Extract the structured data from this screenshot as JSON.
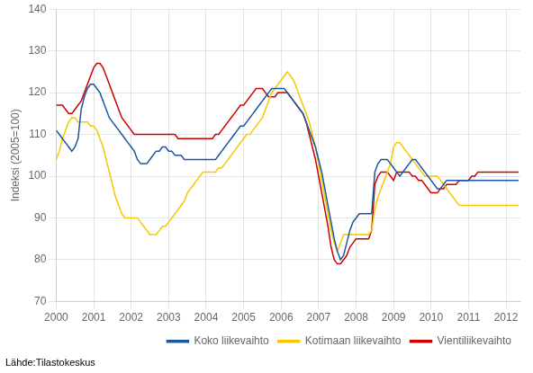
{
  "chart_data": {
    "type": "line",
    "ylabel": "Indeksi (2005=100)",
    "annotation": "Lähde:Tilastokeskus",
    "xlim": [
      2000,
      2012.3833333333332
    ],
    "xticks": [
      2000,
      2001,
      2002,
      2003,
      2004,
      2005,
      2006,
      2007,
      2008,
      2009,
      2010,
      2011,
      2012
    ],
    "ylim": [
      70,
      140
    ],
    "yticks": [
      70,
      80,
      90,
      100,
      110,
      120,
      130,
      140
    ],
    "grid": true,
    "legend": "lower right",
    "x": [
      2000,
      2000.0833333333333,
      2000.1666666666667,
      2000.25,
      2000.3333333333333,
      2000.4166666666667,
      2000.5,
      2000.5833333333333,
      2000.6666666666667,
      2000.75,
      2000.8333333333333,
      2000.9166666666667,
      2001,
      2001.0833333333333,
      2001.1666666666667,
      2001.25,
      2001.3333333333333,
      2001.4166666666667,
      2001.5,
      2001.5833333333333,
      2001.6666666666667,
      2001.75,
      2001.8333333333333,
      2001.9166666666667,
      2002,
      2002.0833333333333,
      2002.1666666666667,
      2002.25,
      2002.3333333333333,
      2002.4166666666667,
      2002.5,
      2002.5833333333333,
      2002.6666666666667,
      2002.75,
      2002.8333333333333,
      2002.9166666666667,
      2003,
      2003.0833333333333,
      2003.1666666666667,
      2003.25,
      2003.3333333333333,
      2003.4166666666667,
      2003.5,
      2003.5833333333333,
      2003.6666666666667,
      2003.75,
      2003.8333333333333,
      2003.9166666666667,
      2004,
      2004.0833333333333,
      2004.1666666666667,
      2004.25,
      2004.3333333333333,
      2004.4166666666667,
      2004.5,
      2004.5833333333333,
      2004.6666666666667,
      2004.75,
      2004.8333333333333,
      2004.9166666666667,
      2005,
      2005.0833333333333,
      2005.1666666666667,
      2005.25,
      2005.3333333333333,
      2005.4166666666667,
      2005.5,
      2005.5833333333333,
      2005.6666666666667,
      2005.75,
      2005.8333333333333,
      2005.9166666666667,
      2006,
      2006.0833333333333,
      2006.1666666666667,
      2006.25,
      2006.3333333333333,
      2006.4166666666667,
      2006.5,
      2006.5833333333333,
      2006.6666666666667,
      2006.75,
      2006.8333333333333,
      2006.9166666666667,
      2007,
      2007.0833333333333,
      2007.1666666666667,
      2007.25,
      2007.3333333333333,
      2007.4166666666667,
      2007.5,
      2007.5833333333333,
      2007.6666666666667,
      2007.75,
      2007.8333333333333,
      2007.9166666666667,
      2008,
      2008.0833333333333,
      2008.1666666666667,
      2008.25,
      2008.3333333333333,
      2008.4166666666667,
      2008.5,
      2008.5833333333333,
      2008.6666666666667,
      2008.75,
      2008.8333333333333,
      2008.9166666666667,
      2009,
      2009.0833333333333,
      2009.1666666666667,
      2009.25,
      2009.3333333333333,
      2009.4166666666667,
      2009.5,
      2009.5833333333333,
      2009.6666666666667,
      2009.75,
      2009.8333333333333,
      2009.9166666666667,
      2010,
      2010.0833333333333,
      2010.1666666666667,
      2010.25,
      2010.3333333333333,
      2010.4166666666667,
      2010.5,
      2010.5833333333333,
      2010.6666666666667,
      2010.75,
      2010.8333333333333,
      2010.9166666666667,
      2011,
      2011.0833333333333,
      2011.1666666666667,
      2011.25,
      2011.3333333333333,
      2011.4166666666667,
      2011.5,
      2011.5833333333333,
      2011.6666666666667,
      2011.75,
      2011.8333333333333,
      2011.9166666666667,
      2012,
      2012.0833333333333,
      2012.1666666666667,
      2012.25,
      2012.3333333333333
    ],
    "series": [
      {
        "name": "Koko liikevaihto",
        "color": "#1a56a0",
        "values": [
          111,
          110,
          109,
          108,
          107,
          106,
          107,
          109,
          116,
          119,
          121,
          122,
          122,
          121,
          120,
          118,
          116,
          114,
          113,
          112,
          111,
          110,
          109,
          108,
          107,
          106,
          104,
          103,
          103,
          103,
          104,
          105,
          106,
          106,
          107,
          107,
          106,
          106,
          105,
          105,
          105,
          104,
          104,
          104,
          104,
          104,
          104,
          104,
          104,
          104,
          104,
          104,
          105,
          106,
          107,
          108,
          109,
          110,
          111,
          112,
          112,
          113,
          114,
          115,
          116,
          117,
          118,
          119,
          120,
          121,
          121,
          121,
          121,
          121,
          120,
          119,
          118,
          117,
          116,
          115,
          113,
          111,
          109,
          107,
          104,
          101,
          97,
          93,
          89,
          85,
          82,
          80,
          81,
          84,
          87,
          89,
          90,
          91,
          91,
          91,
          91,
          91,
          101,
          103,
          104,
          104,
          104,
          103,
          102,
          101,
          100,
          101,
          102,
          103,
          104,
          104,
          103,
          102,
          101,
          100,
          99,
          98,
          97,
          97,
          98,
          99,
          99,
          99,
          99,
          99,
          99,
          99,
          99,
          99,
          99,
          99,
          99,
          99,
          99,
          99,
          99,
          99,
          99,
          99,
          99,
          99,
          99,
          99,
          99
        ]
      },
      {
        "name": "Kotimaan liikevaihto",
        "color": "#f5c800",
        "values": [
          104,
          106,
          109,
          111,
          113,
          114,
          114,
          113,
          113,
          113,
          113,
          112,
          112,
          111,
          109,
          107,
          104,
          101,
          98,
          95,
          93,
          91,
          90,
          90,
          90,
          90,
          90,
          89,
          88,
          87,
          86,
          86,
          86,
          87,
          88,
          88,
          89,
          90,
          91,
          92,
          93,
          94,
          96,
          97,
          98,
          99,
          100,
          101,
          101,
          101,
          101,
          101,
          102,
          102,
          103,
          104,
          105,
          106,
          107,
          108,
          109,
          110,
          110,
          111,
          112,
          113,
          114,
          116,
          118,
          120,
          121,
          122,
          123,
          124,
          125,
          124,
          123,
          121,
          119,
          117,
          115,
          113,
          110,
          107,
          103,
          99,
          95,
          91,
          87,
          84,
          82,
          84,
          86,
          86,
          86,
          86,
          86,
          86,
          86,
          86,
          86,
          87,
          92,
          95,
          97,
          99,
          101,
          103,
          107,
          108,
          108,
          107,
          106,
          105,
          104,
          103,
          102,
          101,
          100,
          100,
          100,
          100,
          100,
          99,
          98,
          97,
          96,
          95,
          94,
          93,
          93,
          93,
          93,
          93,
          93,
          93,
          93,
          93,
          93,
          93,
          93,
          93,
          93,
          93,
          93,
          93,
          93,
          93,
          93
        ]
      },
      {
        "name": "Vientiliikevaihto",
        "color": "#cc0000",
        "values": [
          117,
          117,
          117,
          116,
          115,
          115,
          116,
          117,
          118,
          120,
          122,
          124,
          126,
          127,
          127,
          126,
          124,
          122,
          120,
          118,
          116,
          114,
          113,
          112,
          111,
          110,
          110,
          110,
          110,
          110,
          110,
          110,
          110,
          110,
          110,
          110,
          110,
          110,
          110,
          109,
          109,
          109,
          109,
          109,
          109,
          109,
          109,
          109,
          109,
          109,
          109,
          110,
          110,
          111,
          112,
          113,
          114,
          115,
          116,
          117,
          117,
          118,
          119,
          120,
          121,
          121,
          121,
          120,
          119,
          119,
          119,
          120,
          120,
          120,
          120,
          119,
          118,
          117,
          116,
          115,
          113,
          110,
          107,
          104,
          100,
          96,
          92,
          88,
          83,
          80,
          79,
          79,
          80,
          81,
          83,
          84,
          85,
          85,
          85,
          85,
          85,
          87,
          98,
          100,
          101,
          101,
          101,
          100,
          99,
          101,
          101,
          101,
          101,
          101,
          100,
          100,
          99,
          99,
          98,
          97,
          96,
          96,
          96,
          97,
          97,
          98,
          98,
          98,
          98,
          99,
          99,
          99,
          99,
          100,
          100,
          101,
          101,
          101,
          101,
          101,
          101,
          101,
          101,
          101,
          101,
          101,
          101,
          101,
          101
        ]
      }
    ]
  }
}
